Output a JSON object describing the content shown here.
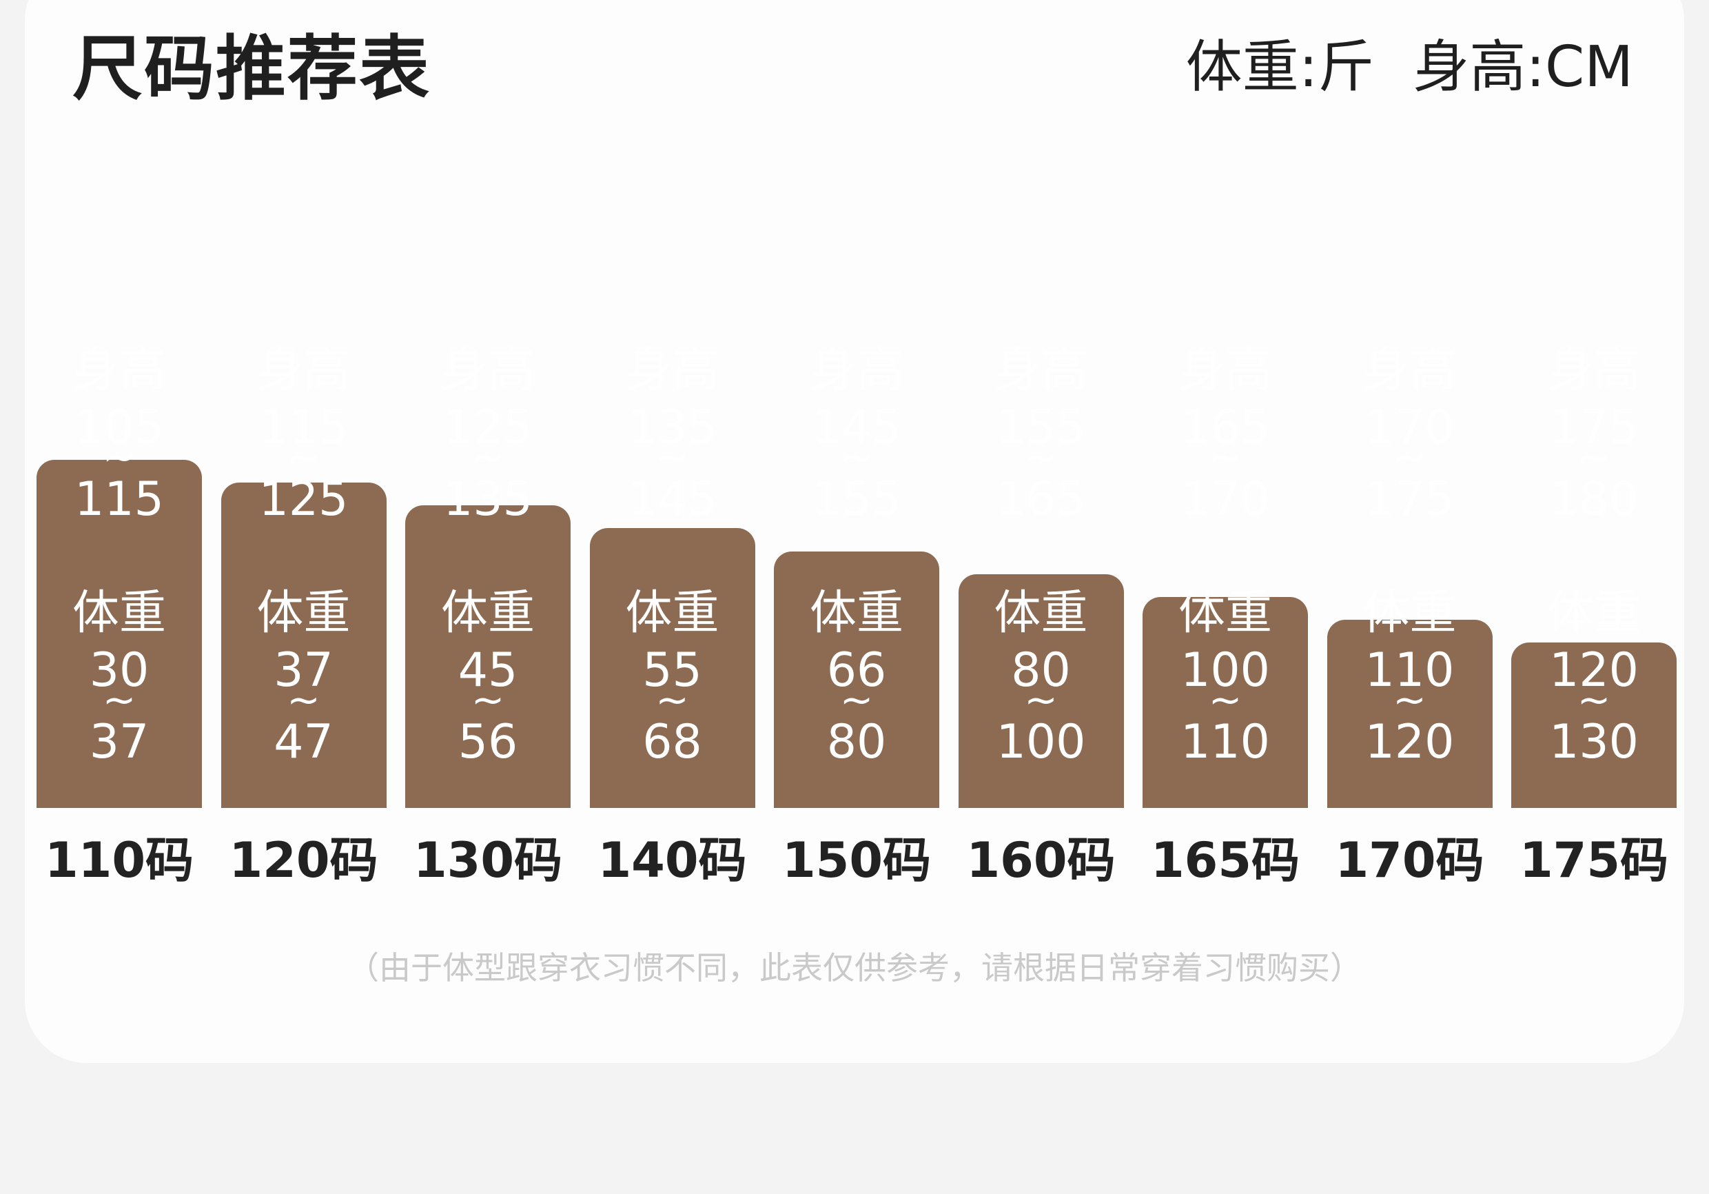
{
  "header": {
    "title": "尺码推荐表",
    "weight_unit": "体重:斤",
    "height_unit": "身高:CM"
  },
  "chart_data": {
    "type": "bar",
    "categories": [
      "110码",
      "120码",
      "130码",
      "140码",
      "150码",
      "160码",
      "165码",
      "170码",
      "175码"
    ],
    "height_label": "身高",
    "weight_label": "体重",
    "range_separator": "~",
    "series": [
      {
        "name": "身高",
        "ranges": [
          [
            105,
            115
          ],
          [
            115,
            125
          ],
          [
            125,
            135
          ],
          [
            135,
            145
          ],
          [
            145,
            155
          ],
          [
            155,
            165
          ],
          [
            165,
            170
          ],
          [
            170,
            175
          ],
          [
            175,
            180
          ]
        ]
      },
      {
        "name": "体重",
        "ranges": [
          [
            30,
            37
          ],
          [
            37,
            47
          ],
          [
            45,
            56
          ],
          [
            55,
            68
          ],
          [
            66,
            80
          ],
          [
            80,
            100
          ],
          [
            100,
            110
          ],
          [
            110,
            120
          ],
          [
            120,
            130
          ]
        ]
      }
    ],
    "bar_color": "#8d6b53"
  },
  "note": "（由于体型跟穿衣习惯不同，此表仅供参考，请根据日常穿着习惯购买）"
}
